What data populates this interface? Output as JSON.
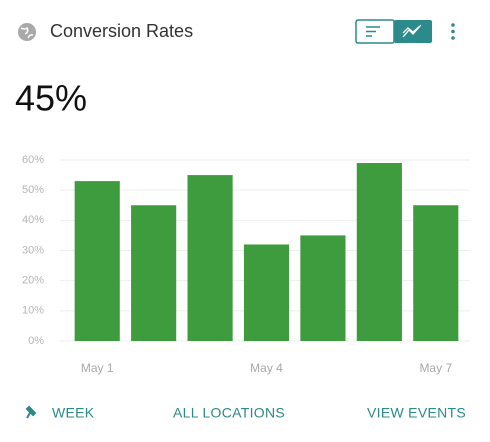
{
  "header": {
    "title": "Conversion Rates"
  },
  "headline": "45%",
  "chart_data": {
    "type": "bar",
    "categories": [
      "May 1",
      null,
      null,
      "May 4",
      null,
      null,
      "May 7"
    ],
    "values": [
      53,
      45,
      55,
      32,
      35,
      59,
      45
    ],
    "color": "#3e9b3e",
    "ylim": [
      0,
      60
    ],
    "yticks": [
      {
        "value": 0,
        "label": "0%"
      },
      {
        "value": 10,
        "label": "10%"
      },
      {
        "value": 20,
        "label": "20%"
      },
      {
        "value": 30,
        "label": "30%"
      },
      {
        "value": 40,
        "label": "40%"
      },
      {
        "value": 50,
        "label": "50%"
      },
      {
        "value": 60,
        "label": "60%"
      }
    ],
    "grid": true
  },
  "footer": {
    "links": [
      "WEEK",
      "ALL LOCATIONS",
      "VIEW EVENTS"
    ]
  }
}
